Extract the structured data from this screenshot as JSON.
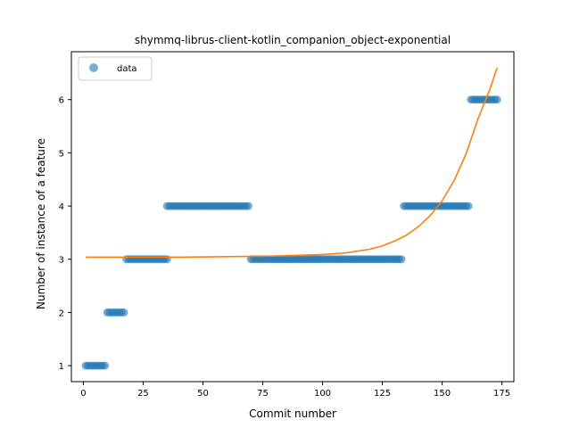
{
  "chart_data": {
    "type": "scatter",
    "title": "shymmq-librus-client-kotlin_companion_object-exponential",
    "xlabel": "Commit number",
    "ylabel": "Number of instance of a feature",
    "xlim": [
      -5,
      180
    ],
    "ylim": [
      0.7,
      6.9
    ],
    "xticks": [
      0,
      25,
      50,
      75,
      100,
      125,
      150,
      175
    ],
    "yticks": [
      1,
      2,
      3,
      4,
      5,
      6
    ],
    "grid": false,
    "legend": {
      "position": "top-left",
      "entries": [
        "data"
      ]
    },
    "colors": {
      "data": "#1f77b4",
      "fit": "#ff7f0e"
    },
    "series": [
      {
        "name": "data",
        "kind": "scatter",
        "segments": [
          {
            "x_start": 1,
            "x_end": 9,
            "y": 1
          },
          {
            "x_start": 10,
            "x_end": 17,
            "y": 2
          },
          {
            "x_start": 18,
            "x_end": 35,
            "y": 3
          },
          {
            "x_start": 35,
            "x_end": 69,
            "y": 4
          },
          {
            "x_start": 70,
            "x_end": 133,
            "y": 3
          },
          {
            "x_start": 134,
            "x_end": 161,
            "y": 4
          },
          {
            "x_start": 162,
            "x_end": 173,
            "y": 6
          }
        ]
      },
      {
        "kind": "line",
        "x": [
          1,
          20,
          40,
          60,
          80,
          100,
          110,
          120,
          125,
          130,
          135,
          140,
          145,
          150,
          155,
          160,
          165,
          170,
          173
        ],
        "y": [
          3.04,
          3.04,
          3.04,
          3.05,
          3.06,
          3.09,
          3.12,
          3.19,
          3.25,
          3.34,
          3.45,
          3.61,
          3.82,
          4.1,
          4.48,
          4.98,
          5.64,
          6.2,
          6.6
        ]
      }
    ]
  }
}
